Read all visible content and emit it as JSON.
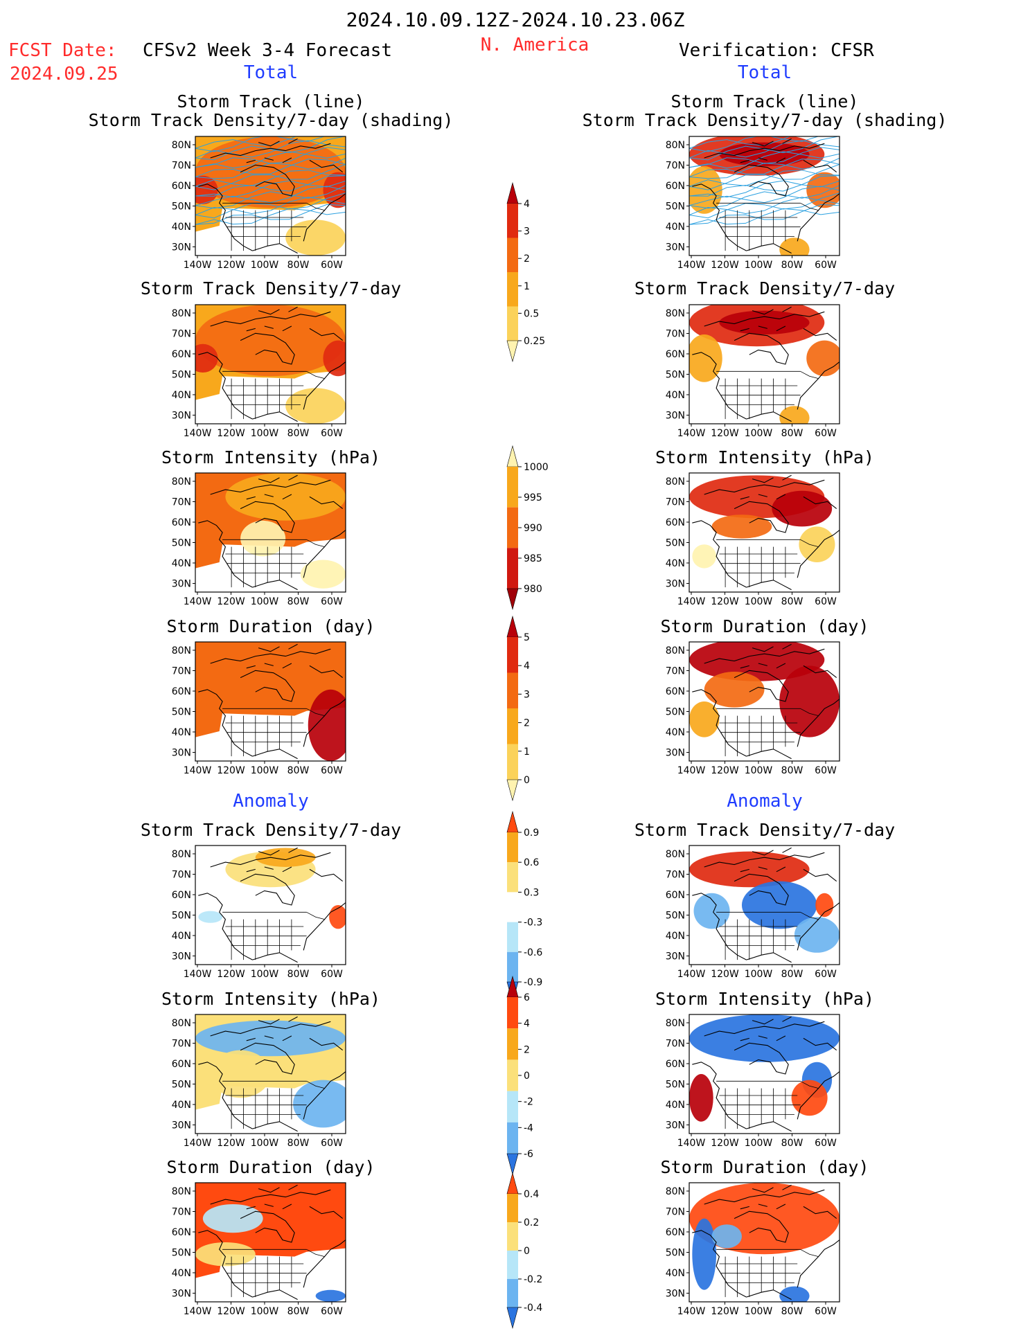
{
  "header": {
    "date_range": "2024.10.09.12Z-2024.10.23.06Z",
    "fcst_label": "FCST Date:",
    "fcst_date": "2024.09.25",
    "left_title": "CFSv2 Week 3-4 Forecast",
    "region": "N. America",
    "right_title": "Verification: CFSR",
    "left_section_total": "Total",
    "right_section_total": "Total",
    "left_section_anomaly": "Anomaly",
    "right_section_anomaly": "Anomaly"
  },
  "axes": {
    "lat_labels": [
      "80N",
      "70N",
      "60N",
      "50N",
      "40N",
      "30N"
    ],
    "lon_labels": [
      "140W",
      "120W",
      "100W",
      "80W",
      "60W"
    ]
  },
  "panels": {
    "left": [
      {
        "title": "Storm Track (line)",
        "subtitle": "Storm Track Density/7-day (shading)"
      },
      {
        "title": "Storm Track Density/7-day",
        "subtitle": ""
      },
      {
        "title": "Storm Intensity (hPa)",
        "subtitle": ""
      },
      {
        "title": "Storm Duration (day)",
        "subtitle": ""
      },
      {
        "title": "Storm Track Density/7-day",
        "subtitle": ""
      },
      {
        "title": "Storm Intensity (hPa)",
        "subtitle": ""
      },
      {
        "title": "Storm Duration (day)",
        "subtitle": ""
      }
    ],
    "right": [
      {
        "title": "Storm Track (line)",
        "subtitle": "Storm Track Density/7-day (shading)"
      },
      {
        "title": "Storm Track Density/7-day",
        "subtitle": ""
      },
      {
        "title": "Storm Intensity (hPa)",
        "subtitle": ""
      },
      {
        "title": "Storm Duration (day)",
        "subtitle": ""
      },
      {
        "title": "Storm Track Density/7-day",
        "subtitle": ""
      },
      {
        "title": "Storm Intensity (hPa)",
        "subtitle": ""
      },
      {
        "title": "Storm Duration (day)",
        "subtitle": ""
      }
    ]
  },
  "colorbars": [
    {
      "name": "density-total",
      "labels": [
        "4",
        "3",
        "2",
        "1",
        "0.5",
        "0.25"
      ],
      "colors": [
        "#b8000a",
        "#e02a10",
        "#f36a12",
        "#f8a81c",
        "#fbd25a",
        "#fff3b0"
      ]
    },
    {
      "name": "intensity-total",
      "labels": [
        "1000",
        "995",
        "990",
        "985",
        "980"
      ],
      "colors": [
        "#fff3b0",
        "#f8a81c",
        "#f36a12",
        "#d01810",
        "#a00008"
      ]
    },
    {
      "name": "duration-total",
      "labels": [
        "5",
        "4",
        "3",
        "2",
        "1",
        "0"
      ],
      "colors": [
        "#b8000a",
        "#e02a10",
        "#f36a12",
        "#f8a81c",
        "#fbd25a",
        "#fff3b0"
      ]
    },
    {
      "name": "density-anomaly",
      "labels": [
        "0.9",
        "0.6",
        "0.3",
        "-0.3",
        "-0.6",
        "-0.9"
      ],
      "colors": [
        "#ff4a10",
        "#f8a81c",
        "#fbe07a",
        "#ffffff",
        "#b6e6f8",
        "#6cb4f0",
        "#2a74e0"
      ]
    },
    {
      "name": "intensity-anomaly",
      "labels": [
        "6",
        "4",
        "2",
        "0",
        "-2",
        "-4",
        "-6"
      ],
      "colors": [
        "#b8000a",
        "#ff4a10",
        "#f8a81c",
        "#fbe07a",
        "#b6e6f8",
        "#6cb4f0",
        "#2a74e0"
      ]
    },
    {
      "name": "duration-anomaly",
      "labels": [
        "0.4",
        "0.2",
        "0",
        "-0.2",
        "-0.4"
      ],
      "colors": [
        "#ff4a10",
        "#f8a81c",
        "#fbe07a",
        "#b6e6f8",
        "#6cb4f0",
        "#2a74e0"
      ]
    }
  ]
}
